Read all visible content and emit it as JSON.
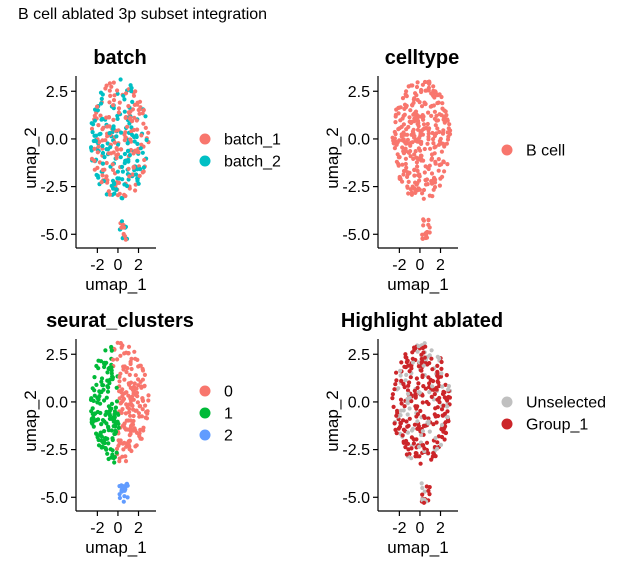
{
  "figure": {
    "title": "B cell ablated 3p subset integration"
  },
  "colors": {
    "axis": "#000000"
  },
  "chart_data": [
    {
      "type": "scatter",
      "title": "batch",
      "xlabel": "umap_1",
      "ylabel": "umap_2",
      "xlim": [
        -3.3,
        3.7
      ],
      "ylim": [
        -5.3,
        3.3
      ],
      "xticks": [
        -2,
        0,
        2
      ],
      "yticks": [
        2.5,
        0.0,
        -2.5,
        -5.0
      ],
      "xtick_labels": [
        "-2",
        "0",
        "2"
      ],
      "ytick_labels": [
        "2.5",
        "0.0",
        "-2.5",
        "-5.0"
      ],
      "legend": {
        "position": "right",
        "entries": [
          "batch_1",
          "batch_2"
        ],
        "colors": [
          "#F8766D",
          "#00BFC4"
        ]
      },
      "series": [
        {
          "name": "batch_1",
          "color": "#F8766D",
          "region": "blob-and-island",
          "fraction": 0.5
        },
        {
          "name": "batch_2",
          "color": "#00BFC4",
          "region": "blob-and-island",
          "fraction": 0.5
        }
      ]
    },
    {
      "type": "scatter",
      "title": "celltype",
      "xlabel": "umap_1",
      "ylabel": "umap_2",
      "xlim": [
        -3.3,
        3.7
      ],
      "ylim": [
        -5.3,
        3.3
      ],
      "xticks": [
        -2,
        0,
        2
      ],
      "yticks": [
        2.5,
        0.0,
        -2.5,
        -5.0
      ],
      "xtick_labels": [
        "-2",
        "0",
        "2"
      ],
      "ytick_labels": [
        "2.5",
        "0.0",
        "-2.5",
        "-5.0"
      ],
      "legend": {
        "position": "right",
        "entries": [
          "B cell"
        ],
        "colors": [
          "#F8766D"
        ]
      },
      "series": [
        {
          "name": "B cell",
          "color": "#F8766D",
          "region": "blob-and-island",
          "fraction": 1.0
        }
      ]
    },
    {
      "type": "scatter",
      "title": "seurat_clusters",
      "xlabel": "umap_1",
      "ylabel": "umap_2",
      "xlim": [
        -3.3,
        3.7
      ],
      "ylim": [
        -5.3,
        3.3
      ],
      "xticks": [
        -2,
        0,
        2
      ],
      "yticks": [
        2.5,
        0.0,
        -2.5,
        -5.0
      ],
      "xtick_labels": [
        "-2",
        "0",
        "2"
      ],
      "ytick_labels": [
        "2.5",
        "0.0",
        "-2.5",
        "-5.0"
      ],
      "legend": {
        "position": "right",
        "entries": [
          "0",
          "1",
          "2"
        ],
        "colors": [
          "#F8766D",
          "#00BA38",
          "#619CFF"
        ]
      },
      "series": [
        {
          "name": "0",
          "color": "#F8766D",
          "region": "blob-right"
        },
        {
          "name": "1",
          "color": "#00BA38",
          "region": "blob-left"
        },
        {
          "name": "2",
          "color": "#619CFF",
          "region": "island"
        }
      ]
    },
    {
      "type": "scatter",
      "title": "Highlight ablated",
      "xlabel": "umap_1",
      "ylabel": "umap_2",
      "xlim": [
        -3.3,
        3.7
      ],
      "ylim": [
        -5.3,
        3.3
      ],
      "xticks": [
        -2,
        0,
        2
      ],
      "yticks": [
        2.5,
        0.0,
        -2.5,
        -5.0
      ],
      "xtick_labels": [
        "-2",
        "0",
        "2"
      ],
      "ytick_labels": [
        "2.5",
        "0.0",
        "-2.5",
        "-5.0"
      ],
      "legend": {
        "position": "right",
        "entries": [
          "Unselected",
          "Group_1"
        ],
        "colors": [
          "#C0C0C0",
          "#CC2529"
        ]
      },
      "series": [
        {
          "name": "Unselected",
          "color": "#C0C0C0",
          "region": "blob-and-island",
          "fraction": 0.3
        },
        {
          "name": "Group_1",
          "color": "#CC2529",
          "region": "blob-and-island",
          "fraction": 0.7
        }
      ]
    }
  ]
}
